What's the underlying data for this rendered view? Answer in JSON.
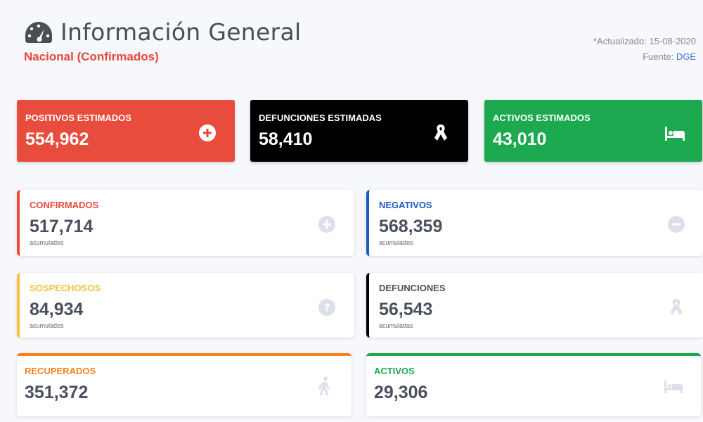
{
  "header": {
    "title": "Información General",
    "subtitle": "Nacional (Confirmados)",
    "updated": "*Actualizado: 15-08-2020",
    "source_label": "Fuente:",
    "source_link": "DGE"
  },
  "top_cards": [
    {
      "label": "POSITIVOS ESTIMADOS",
      "value": "554,962",
      "color": "#e74c3c",
      "icon": "plus-circle-icon"
    },
    {
      "label": "DEFUNCIONES ESTIMADAS",
      "value": "58,410",
      "color": "#000000",
      "icon": "ribbon-icon"
    },
    {
      "label": "ACTIVOS ESTIMADOS",
      "value": "43,010",
      "color": "#1ca94f",
      "icon": "bed-icon"
    }
  ],
  "cards": [
    {
      "label": "CONFIRMADOS",
      "value": "517,714",
      "sub": "acumulados",
      "color": "#e74a3b",
      "icon": "plus-circle-icon"
    },
    {
      "label": "NEGATIVOS",
      "value": "568,359",
      "sub": "acumulados",
      "color": "#1b5bbf",
      "icon": "minus-circle-icon"
    },
    {
      "label": "SOSPECHOSOS",
      "value": "84,934",
      "sub": "acumulados",
      "color": "#f6c23e",
      "icon": "question-circle-icon"
    },
    {
      "label": "DEFUNCIONES",
      "value": "56,543",
      "sub": "acumuladas",
      "color": "#4a4f5d",
      "icon": "ribbon-icon"
    },
    {
      "label": "RECUPERADOS",
      "value": "351,372",
      "color": "#f5811f",
      "icon": "walking-icon"
    },
    {
      "label": "ACTIVOS",
      "value": "29,306",
      "color": "#1ca94f",
      "icon": "bed-icon"
    }
  ]
}
